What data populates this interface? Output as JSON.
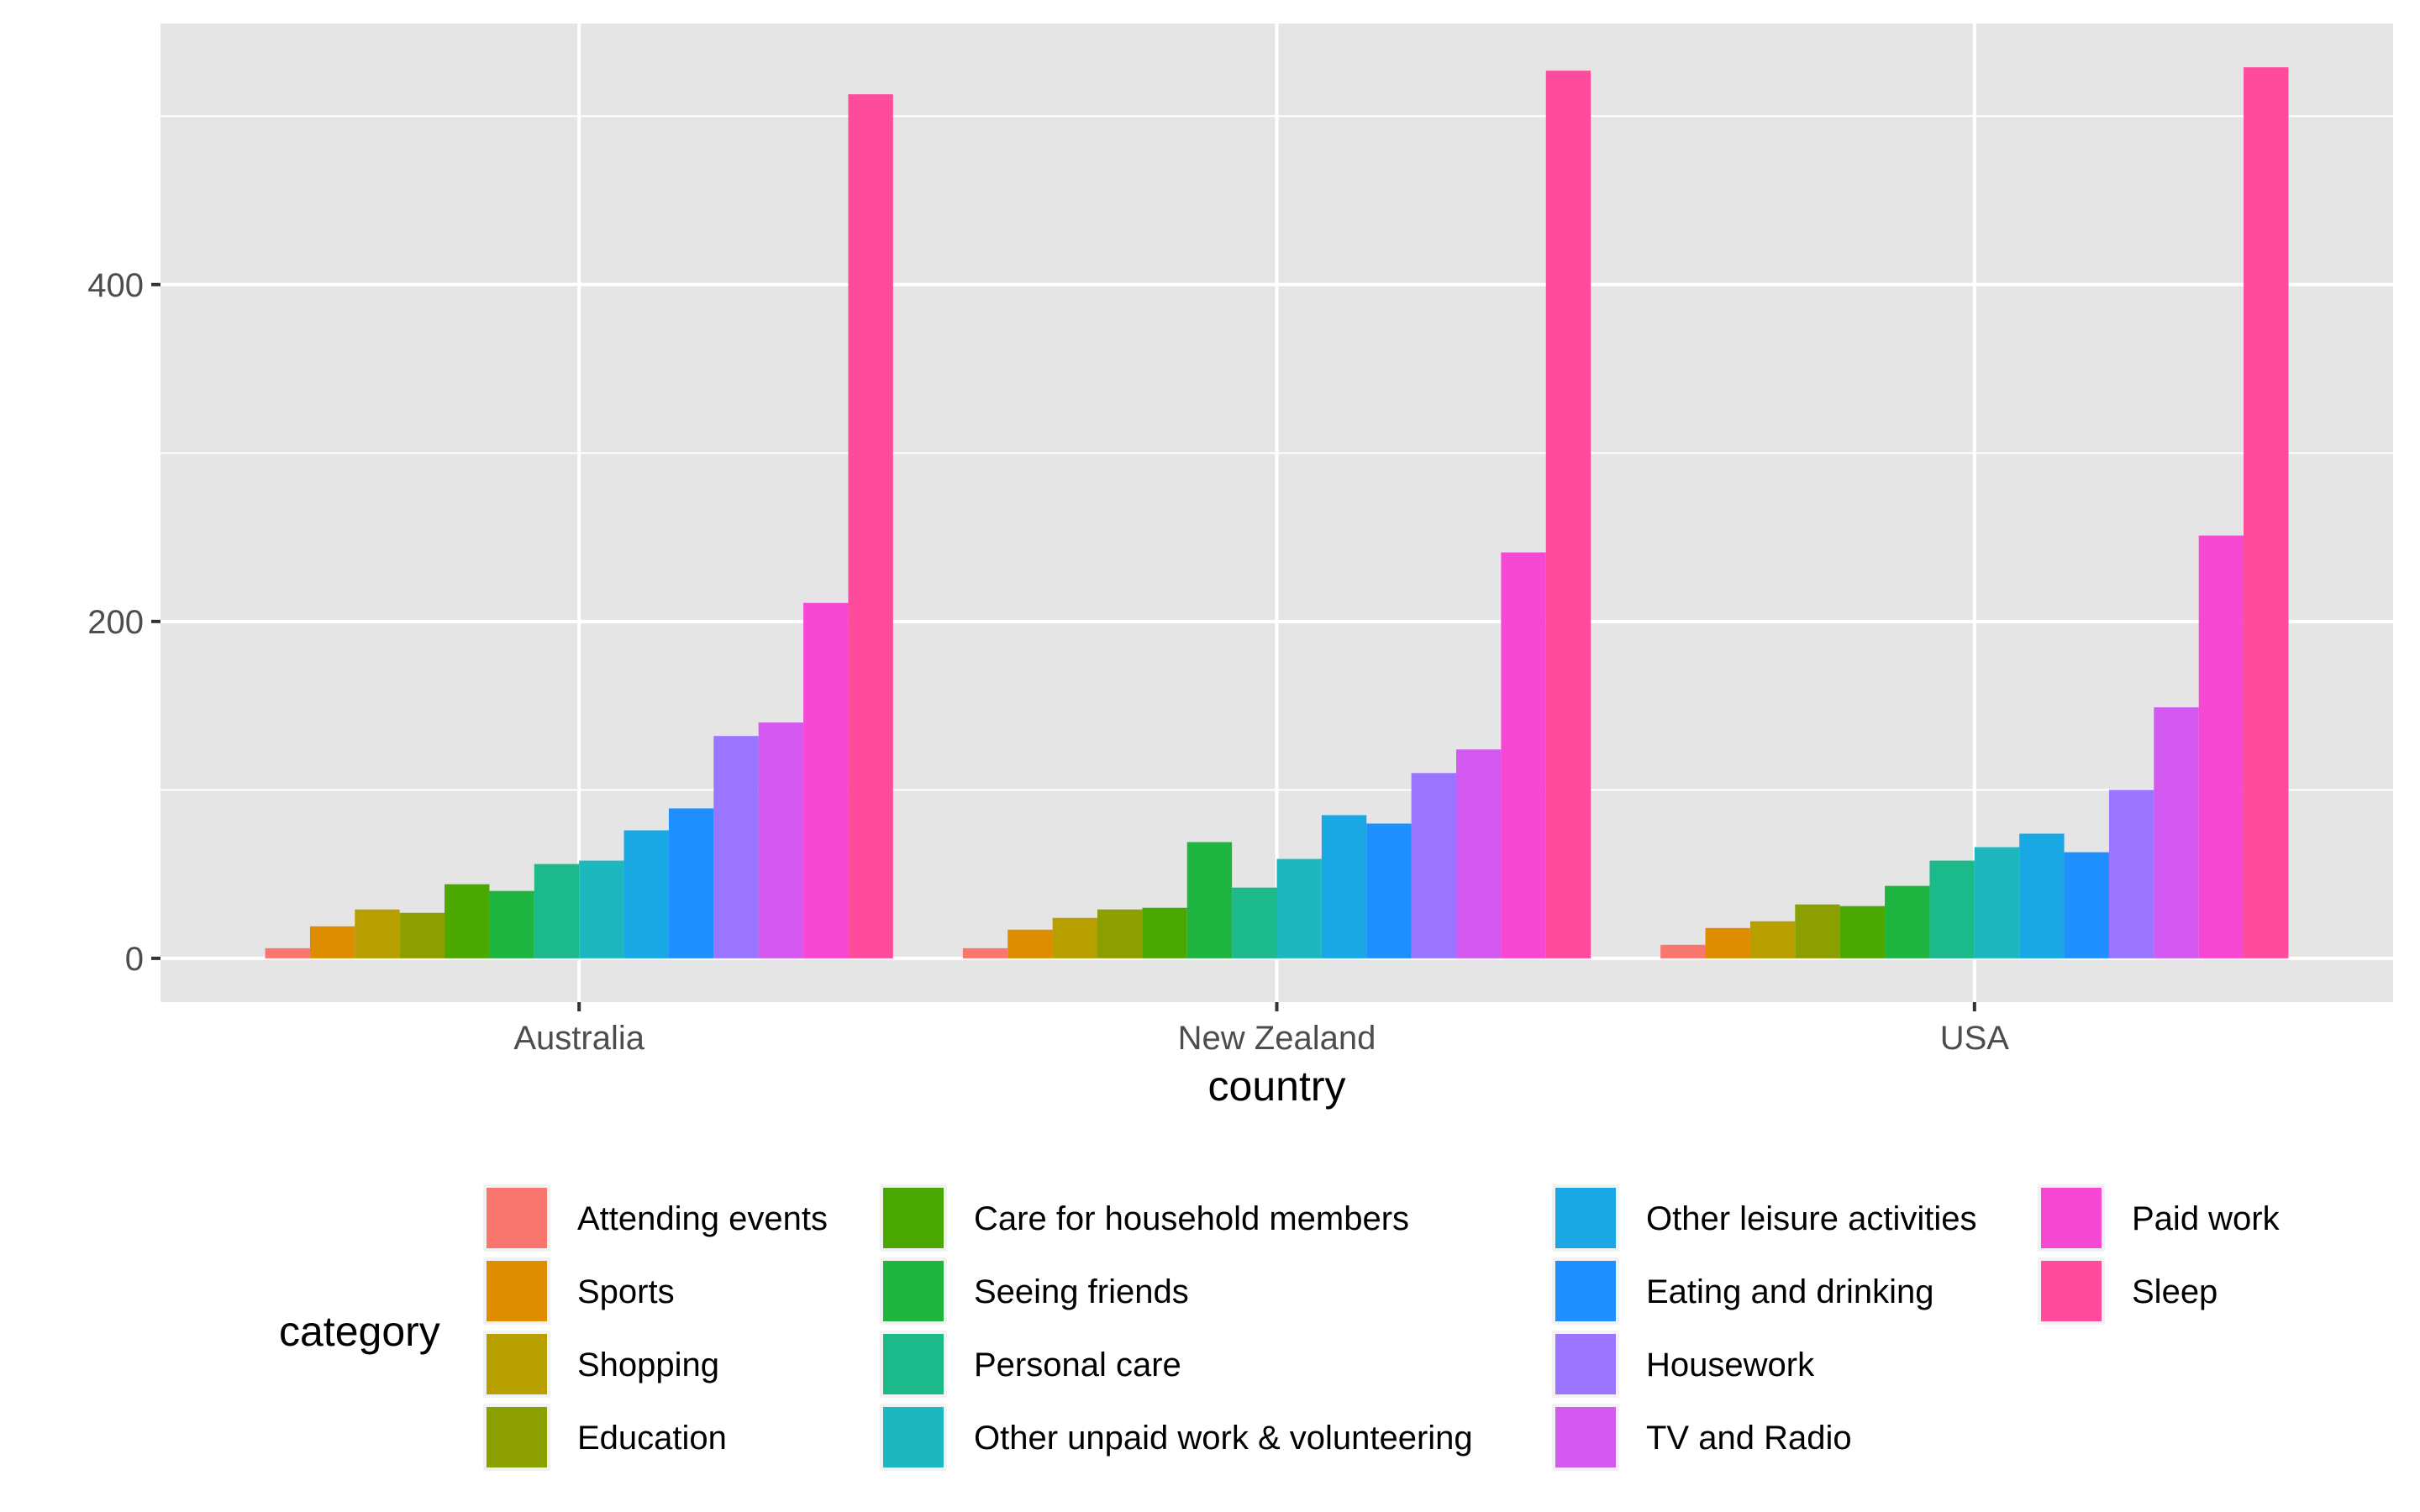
{
  "chart_data": {
    "type": "bar",
    "categories": [
      "Australia",
      "New Zealand",
      "USA"
    ],
    "xlabel": "country",
    "ylabel": "",
    "ylim": [
      -26,
      555
    ],
    "yticks": [
      0,
      200,
      400
    ],
    "ytick_labels": [
      "0",
      "200",
      "400"
    ],
    "grid": true,
    "legend_position": "bottom",
    "legend_title": "category",
    "series": [
      {
        "name": "Attending events",
        "color": "#F8766D",
        "values": [
          6,
          6,
          8
        ]
      },
      {
        "name": "Sports",
        "color": "#DE8C00",
        "values": [
          19,
          17,
          18
        ]
      },
      {
        "name": "Shopping",
        "color": "#B79F00",
        "values": [
          29,
          24,
          22
        ]
      },
      {
        "name": "Education",
        "color": "#8B9F00",
        "values": [
          27,
          29,
          32
        ]
      },
      {
        "name": "Care for household members",
        "color": "#4BA800",
        "values": [
          44,
          30,
          31
        ]
      },
      {
        "name": "Seeing friends",
        "color": "#1DB440",
        "values": [
          40,
          69,
          43
        ]
      },
      {
        "name": "Personal care",
        "color": "#1CB98A",
        "values": [
          56,
          42,
          58
        ]
      },
      {
        "name": "Other unpaid work & volunteering",
        "color": "#1DB8BF",
        "values": [
          58,
          59,
          66
        ]
      },
      {
        "name": "Other leisure activities",
        "color": "#1AA8E5",
        "values": [
          76,
          85,
          74
        ]
      },
      {
        "name": "Eating and drinking",
        "color": "#1F8FFF",
        "values": [
          89,
          80,
          63
        ]
      },
      {
        "name": "Housework",
        "color": "#9A75FF",
        "values": [
          132,
          110,
          100
        ]
      },
      {
        "name": "TV and Radio",
        "color": "#D459F0",
        "values": [
          140,
          124,
          149
        ]
      },
      {
        "name": "Paid work",
        "color": "#F748D4",
        "values": [
          211,
          241,
          251
        ]
      },
      {
        "name": "Sleep",
        "color": "#FF4B9B",
        "values": [
          513,
          527,
          529
        ]
      }
    ]
  }
}
